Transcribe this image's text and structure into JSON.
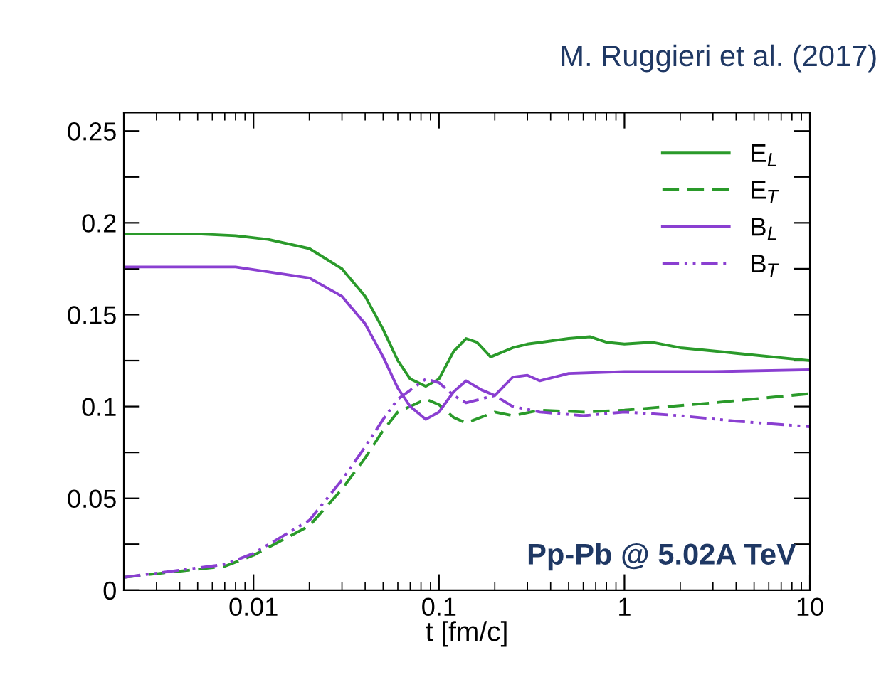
{
  "chart_data": {
    "type": "line",
    "title": "M. Ruggieri et al. (2017)",
    "xlabel": "t [fm/c]",
    "annotations": [
      "Pp-Pb @ 5.02A TeV"
    ],
    "log": "x",
    "xlim": [
      0.002,
      10
    ],
    "xticks": [
      0.01,
      0.1,
      1,
      10
    ],
    "ylim": [
      0,
      0.26
    ],
    "yticks": [
      0,
      {
        "value": 0.025,
        "label": null
      },
      0.05,
      {
        "value": 0.075,
        "label": null
      },
      0.1,
      {
        "value": 0.125,
        "label": null
      },
      0.15,
      {
        "value": 0.175,
        "label": null
      },
      0.2,
      {
        "value": 0.225,
        "label": null
      },
      0.25
    ],
    "grid": false,
    "legend": "top right",
    "series": [
      {
        "name": "E$_{L}$",
        "color": "#2a9a2a",
        "line_style": "solid",
        "x": [
          0.002,
          0.005,
          0.008,
          0.012,
          0.02,
          0.03,
          0.04,
          0.05,
          0.06,
          0.07,
          0.085,
          0.1,
          0.12,
          0.14,
          0.16,
          0.19,
          0.25,
          0.3,
          0.5,
          0.65,
          0.8,
          1.0,
          1.4,
          2,
          4,
          10
        ],
        "values": [
          0.194,
          0.194,
          0.193,
          0.191,
          0.186,
          0.175,
          0.16,
          0.142,
          0.125,
          0.115,
          0.111,
          0.115,
          0.13,
          0.137,
          0.135,
          0.127,
          0.132,
          0.134,
          0.137,
          0.138,
          0.135,
          0.134,
          0.135,
          0.132,
          0.129,
          0.125
        ]
      },
      {
        "name": "E$_{T}$",
        "color": "#2a9a2a",
        "line_style": "dashed",
        "x": [
          0.002,
          0.007,
          0.01,
          0.02,
          0.03,
          0.04,
          0.05,
          0.06,
          0.085,
          0.1,
          0.12,
          0.14,
          0.2,
          0.25,
          0.35,
          0.6,
          1,
          3,
          10
        ],
        "values": [
          0.007,
          0.013,
          0.019,
          0.035,
          0.055,
          0.072,
          0.087,
          0.097,
          0.104,
          0.101,
          0.094,
          0.091,
          0.097,
          0.095,
          0.098,
          0.097,
          0.098,
          0.102,
          0.107
        ]
      },
      {
        "name": "B$_{L}$",
        "color": "#8a3fd1",
        "line_style": "solid",
        "x": [
          0.002,
          0.008,
          0.02,
          0.03,
          0.04,
          0.05,
          0.06,
          0.07,
          0.085,
          0.1,
          0.12,
          0.14,
          0.17,
          0.2,
          0.25,
          0.3,
          0.35,
          0.5,
          1,
          3,
          10
        ],
        "values": [
          0.176,
          0.176,
          0.17,
          0.16,
          0.145,
          0.127,
          0.11,
          0.1,
          0.093,
          0.097,
          0.108,
          0.114,
          0.109,
          0.106,
          0.116,
          0.117,
          0.114,
          0.118,
          0.119,
          0.119,
          0.12
        ]
      },
      {
        "name": "B$_{T}$",
        "color": "#8a3fd1",
        "line_style": "dashdot",
        "x": [
          0.002,
          0.007,
          0.01,
          0.02,
          0.03,
          0.04,
          0.05,
          0.06,
          0.085,
          0.1,
          0.12,
          0.14,
          0.2,
          0.25,
          0.35,
          0.6,
          1,
          2,
          4,
          10
        ],
        "values": [
          0.007,
          0.014,
          0.02,
          0.038,
          0.06,
          0.078,
          0.093,
          0.104,
          0.115,
          0.113,
          0.106,
          0.102,
          0.106,
          0.1,
          0.097,
          0.095,
          0.097,
          0.095,
          0.092,
          0.089
        ]
      }
    ]
  }
}
